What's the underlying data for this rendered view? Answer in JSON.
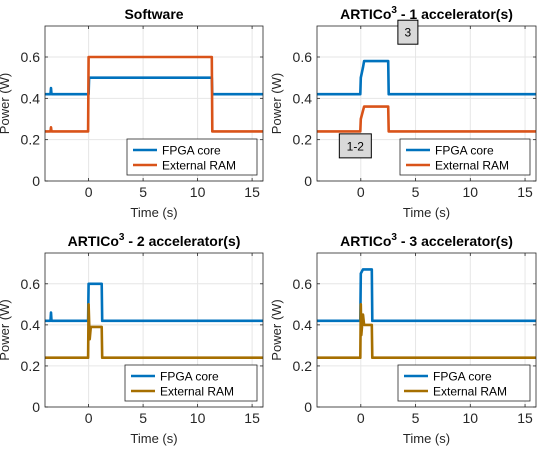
{
  "chart_data": [
    {
      "type": "line",
      "title": "Software",
      "title_superscript": "",
      "title_suffix": "",
      "xlabel": "Time (s)",
      "ylabel": "Power (W)",
      "xlim": [
        -4,
        16
      ],
      "ylim": [
        0,
        0.75
      ],
      "xticks": [
        0,
        5,
        10,
        15
      ],
      "yticks": [
        0,
        0.2,
        0.4,
        0.6
      ],
      "ytick_labels": [
        "0",
        "0.2",
        "0.4",
        "0.6"
      ],
      "grid": true,
      "legend_position": "lower-right",
      "series": [
        {
          "name": "FPGA core",
          "color": "#0072BD",
          "x": [
            -4,
            -3.5,
            -3.45,
            -3.4,
            -3,
            0,
            0.05,
            11.3,
            11.35,
            16
          ],
          "y": [
            0.42,
            0.42,
            0.45,
            0.42,
            0.42,
            0.42,
            0.5,
            0.5,
            0.42,
            0.42
          ]
        },
        {
          "name": "External RAM",
          "color": "#D95319",
          "x": [
            -4,
            -3.5,
            -3.45,
            -3.4,
            -0.05,
            0,
            11.3,
            11.35,
            16
          ],
          "y": [
            0.24,
            0.24,
            0.26,
            0.24,
            0.24,
            0.6,
            0.6,
            0.24,
            0.24
          ]
        }
      ],
      "annotations": []
    },
    {
      "type": "line",
      "title": "ARTICo",
      "title_superscript": "3",
      "title_suffix": " - 1 accelerator(s)",
      "xlabel": "Time (s)",
      "ylabel": "Power (W)",
      "xlim": [
        -4,
        16
      ],
      "ylim": [
        0,
        0.75
      ],
      "xticks": [
        0,
        5,
        10,
        15
      ],
      "yticks": [
        0,
        0.2,
        0.4,
        0.6
      ],
      "ytick_labels": [
        "0",
        "0.2",
        "0.4",
        "0.6"
      ],
      "grid": true,
      "legend_position": "lower-right",
      "series": [
        {
          "name": "FPGA core",
          "color": "#0072BD",
          "x": [
            -4,
            -0.05,
            0,
            0.2,
            0.3,
            2.5,
            2.55,
            16
          ],
          "y": [
            0.42,
            0.42,
            0.5,
            0.55,
            0.58,
            0.58,
            0.42,
            0.42
          ]
        },
        {
          "name": "External RAM",
          "color": "#D95319",
          "x": [
            -4,
            -0.05,
            0,
            0.2,
            0.3,
            2.5,
            2.55,
            16
          ],
          "y": [
            0.24,
            0.24,
            0.3,
            0.34,
            0.36,
            0.36,
            0.24,
            0.24
          ]
        }
      ],
      "annotations": [
        {
          "text": "3",
          "x": 4.3,
          "y": 0.72
        },
        {
          "text": "1-2",
          "x": -0.5,
          "y": 0.17
        }
      ]
    },
    {
      "type": "line",
      "title": "ARTICo",
      "title_superscript": "3",
      "title_suffix": " - 2 accelerator(s)",
      "xlabel": "Time (s)",
      "ylabel": "Power (W)",
      "xlim": [
        -4,
        16
      ],
      "ylim": [
        0,
        0.75
      ],
      "xticks": [
        0,
        5,
        10,
        15
      ],
      "yticks": [
        0,
        0.2,
        0.4,
        0.6
      ],
      "ytick_labels": [
        "0",
        "0.2",
        "0.4",
        "0.6"
      ],
      "grid": true,
      "legend_position": "lower-right",
      "series": [
        {
          "name": "FPGA core",
          "color": "#0072BD",
          "x": [
            -4,
            -3.5,
            -3.45,
            -3.4,
            -0.05,
            0,
            1.2,
            1.25,
            16
          ],
          "y": [
            0.42,
            0.42,
            0.46,
            0.42,
            0.42,
            0.6,
            0.6,
            0.42,
            0.42
          ]
        },
        {
          "name": "External RAM",
          "color": "#A66F00",
          "x": [
            -4,
            -0.05,
            0,
            0.05,
            0.1,
            0.2,
            1.2,
            1.25,
            16
          ],
          "y": [
            0.24,
            0.24,
            0.5,
            0.42,
            0.33,
            0.39,
            0.39,
            0.24,
            0.24
          ]
        }
      ],
      "annotations": []
    },
    {
      "type": "line",
      "title": "ARTICo",
      "title_superscript": "3",
      "title_suffix": " - 3 accelerator(s)",
      "xlabel": "Time (s)",
      "ylabel": "Power (W)",
      "xlim": [
        -4,
        16
      ],
      "ylim": [
        0,
        0.75
      ],
      "xticks": [
        0,
        5,
        10,
        15
      ],
      "yticks": [
        0,
        0.2,
        0.4,
        0.6
      ],
      "ytick_labels": [
        "0",
        "0.2",
        "0.4",
        "0.6"
      ],
      "grid": true,
      "legend_position": "lower-right",
      "series": [
        {
          "name": "FPGA core",
          "color": "#0072BD",
          "x": [
            -4,
            -0.05,
            0,
            0.2,
            1.0,
            1.05,
            16
          ],
          "y": [
            0.42,
            0.42,
            0.65,
            0.67,
            0.67,
            0.42,
            0.42
          ]
        },
        {
          "name": "External RAM",
          "color": "#A66F00",
          "x": [
            -4,
            -0.05,
            0,
            0.05,
            0.2,
            0.3,
            1.0,
            1.05,
            16
          ],
          "y": [
            0.24,
            0.24,
            0.5,
            0.35,
            0.45,
            0.4,
            0.4,
            0.24,
            0.24
          ]
        }
      ],
      "annotations": []
    }
  ]
}
